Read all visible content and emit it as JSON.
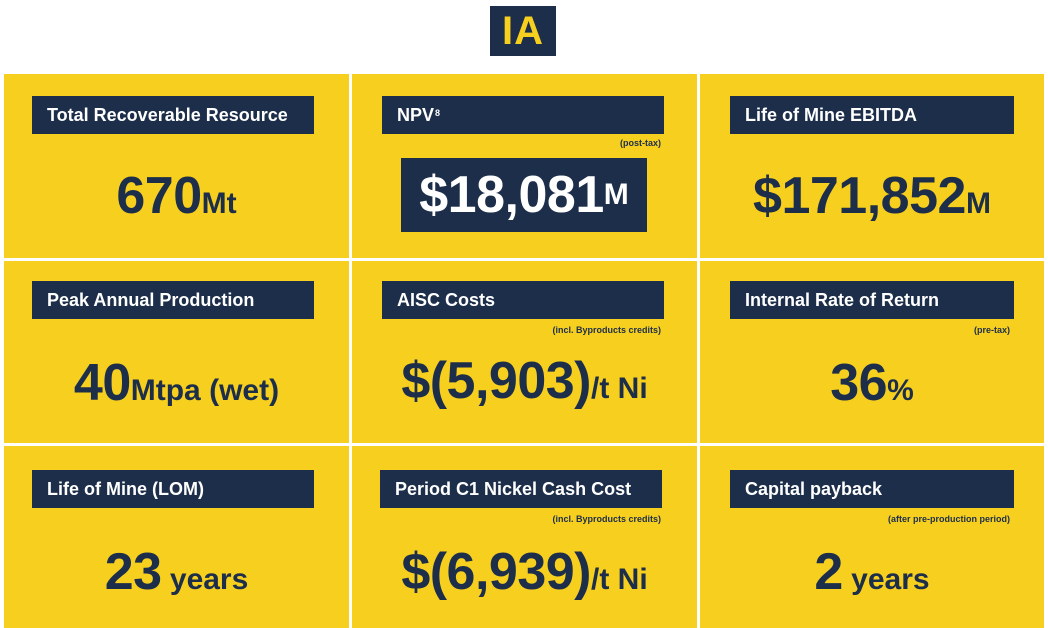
{
  "badge": "IA",
  "cells": [
    {
      "label": "Total Recoverable Resource",
      "note": "",
      "value": "670",
      "unit": "Mt"
    },
    {
      "label": "NPV",
      "label_sup": "8",
      "note": "(post-tax)",
      "value": "$18,081",
      "unit": "M"
    },
    {
      "label": "Life of Mine EBITDA",
      "note": "",
      "value": "$171,852",
      "unit": "M"
    },
    {
      "label": "Peak Annual Production",
      "note": "",
      "value": "40",
      "unit": "Mtpa (wet)"
    },
    {
      "label": "AISC Costs",
      "note": "(incl. Byproducts credits)",
      "value": "$(5,903)",
      "unit": "/t Ni"
    },
    {
      "label": "Internal Rate of Return",
      "note": "(pre-tax)",
      "value": "36",
      "unit": "%"
    },
    {
      "label": "Life of Mine (LOM)",
      "note": "",
      "value": "23",
      "unit": " years"
    },
    {
      "label": "Period C1 Nickel Cash Cost",
      "note": "(incl. Byproducts credits)",
      "value": "$(6,939)",
      "unit": "/t Ni"
    },
    {
      "label": "Capital payback",
      "note": "(after pre-production period)",
      "value": "2",
      "unit": " years"
    }
  ],
  "colors": {
    "navy": "#1c2e4a",
    "yellow": "#f7cf1f",
    "white": "#ffffff"
  }
}
